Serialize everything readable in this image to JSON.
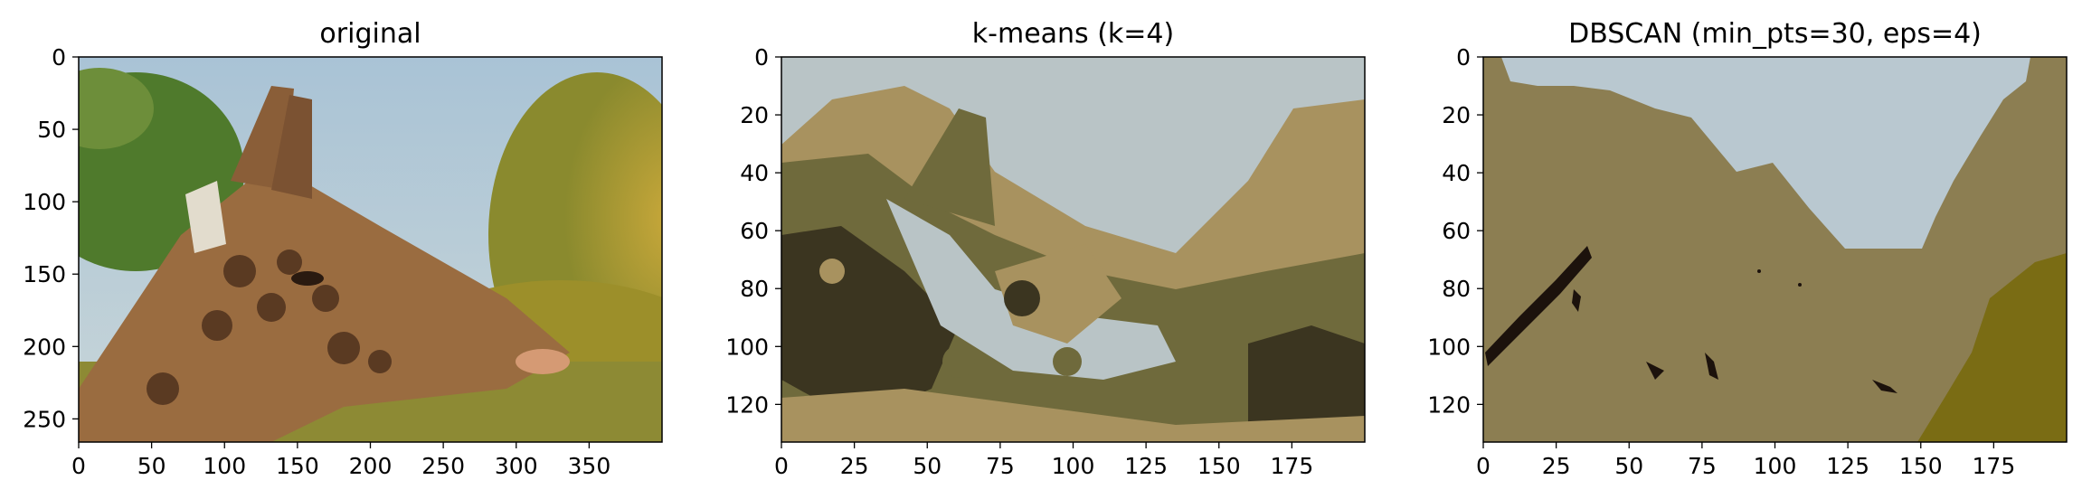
{
  "chart_data": [
    {
      "type": "image",
      "title": "original",
      "xlim": [
        0,
        400
      ],
      "ylim": [
        266,
        0
      ],
      "xticks": [
        0,
        50,
        100,
        150,
        200,
        250,
        300,
        350
      ],
      "yticks": [
        0,
        50,
        100,
        150,
        200,
        250
      ],
      "xtick_labels": [
        "0",
        "50",
        "100",
        "150",
        "200",
        "250",
        "300",
        "350"
      ],
      "ytick_labels": [
        "0",
        "50",
        "100",
        "150",
        "200",
        "250"
      ],
      "content": "photograph of a giraffe head against a blue sky and green-yellow foliage"
    },
    {
      "type": "image",
      "title": "k-means (k=4)",
      "xlim": [
        0,
        200
      ],
      "ylim": [
        133,
        0
      ],
      "xticks": [
        0,
        25,
        50,
        75,
        100,
        125,
        150,
        175
      ],
      "yticks": [
        0,
        20,
        40,
        60,
        80,
        100,
        120
      ],
      "xtick_labels": [
        "0",
        "25",
        "50",
        "75",
        "100",
        "125",
        "150",
        "175"
      ],
      "ytick_labels": [
        "0",
        "20",
        "40",
        "60",
        "80",
        "100",
        "120"
      ],
      "clusters": 4,
      "cluster_colors": [
        "#3b3520",
        "#6f6a3c",
        "#a8925f",
        "#b9c4c6"
      ]
    },
    {
      "type": "image",
      "title": "DBSCAN (min_pts=30, eps=4)",
      "xlim": [
        0,
        200
      ],
      "ylim": [
        133,
        0
      ],
      "xticks": [
        0,
        25,
        50,
        75,
        100,
        125,
        150,
        175
      ],
      "yticks": [
        0,
        20,
        40,
        60,
        80,
        100,
        120
      ],
      "xtick_labels": [
        "0",
        "25",
        "50",
        "75",
        "100",
        "125",
        "150",
        "175"
      ],
      "ytick_labels": [
        "0",
        "20",
        "40",
        "60",
        "80",
        "100",
        "120"
      ],
      "cluster_colors": [
        "#8c7e52",
        "#b9c8d0",
        "#1c120c",
        "#7a6c14"
      ]
    }
  ]
}
